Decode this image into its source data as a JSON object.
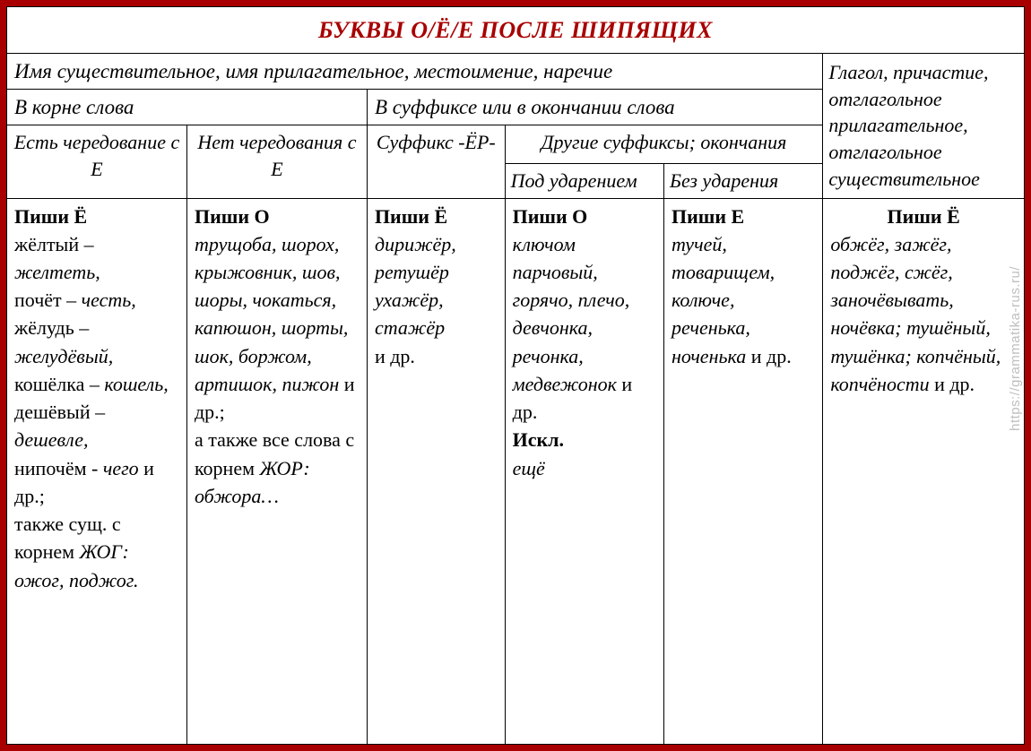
{
  "title": "БУКВЫ О/Ё/Е ПОСЛЕ ШИПЯЩИХ",
  "watermark": "https://grammatika-rus.ru/",
  "header_row1": {
    "noun_adj_pron_adv": "Имя существительное, имя прилагательное, местоимение, наречие",
    "verb_block": "Глагол, причастие, отглагольное прилагательное, отглагольное существительное"
  },
  "header_row2": {
    "root": "В корне слова",
    "suffix_ending": "В суффиксе или в окончании слова"
  },
  "header_row3": {
    "alt_e": "Есть чередование с Е",
    "no_alt_e": "Нет чередования с Е",
    "suffix_er": "Суффикс -ЁР-",
    "other_suffix": "Другие суффиксы; окончания"
  },
  "sub_header": {
    "stressed": "Под ударением",
    "unstressed": "Без ударения"
  },
  "col1": {
    "rule": "Пиши Ё",
    "text_html": "жёлтый – <i>желтеть,</i><br>почёт – <i>честь,</i><br>жёлудь – <i>желудёвый,</i><br>кошёлка – <i>кошель,</i><br>дешёвый – <i>дешевле,</i><br>нипочём - <i>чего</i> и др.;<br>также сущ. с корнем <i>ЖОГ:</i><br><i>ожог, поджог.</i>"
  },
  "col2": {
    "rule": "Пиши О",
    "text_html": "<i>трущоба, шорох, крыжовник, шов, шоры, чокаться, капюшон, шорты, шок, боржом, артишок, пижон</i> и др.;<br>а также все слова с корнем <i>ЖОР:</i><br><i>обжора…</i>"
  },
  "col3": {
    "rule": "Пиши Ё",
    "text_html": "<i>дирижёр, ретушёр ухажёр, стажёр</i><br>и др."
  },
  "col4": {
    "rule": "Пиши О",
    "text_html": "<i>ключом парчовый, горячо, плечо, девчонка, речонка, медвежонок</i> и др.<br><b>Искл.</b><br><i>ещё</i>"
  },
  "col5": {
    "rule": "Пиши Е",
    "text_html": "<i>тучей, товарищем, колюче, реченька, ноченька</i> и др."
  },
  "col6": {
    "rule": "Пиши Ё",
    "text_html": "<i>обжёг, зажёг, поджёг, сжёг, заночёвывать, ночёвка; тушёный, тушёнка; копчёный, копчёности</i> и др."
  },
  "colors": {
    "border": "#a80000",
    "title": "#a80000",
    "cell_border": "#000000",
    "bg": "#ffffff",
    "watermark": "#bfbfbf"
  }
}
